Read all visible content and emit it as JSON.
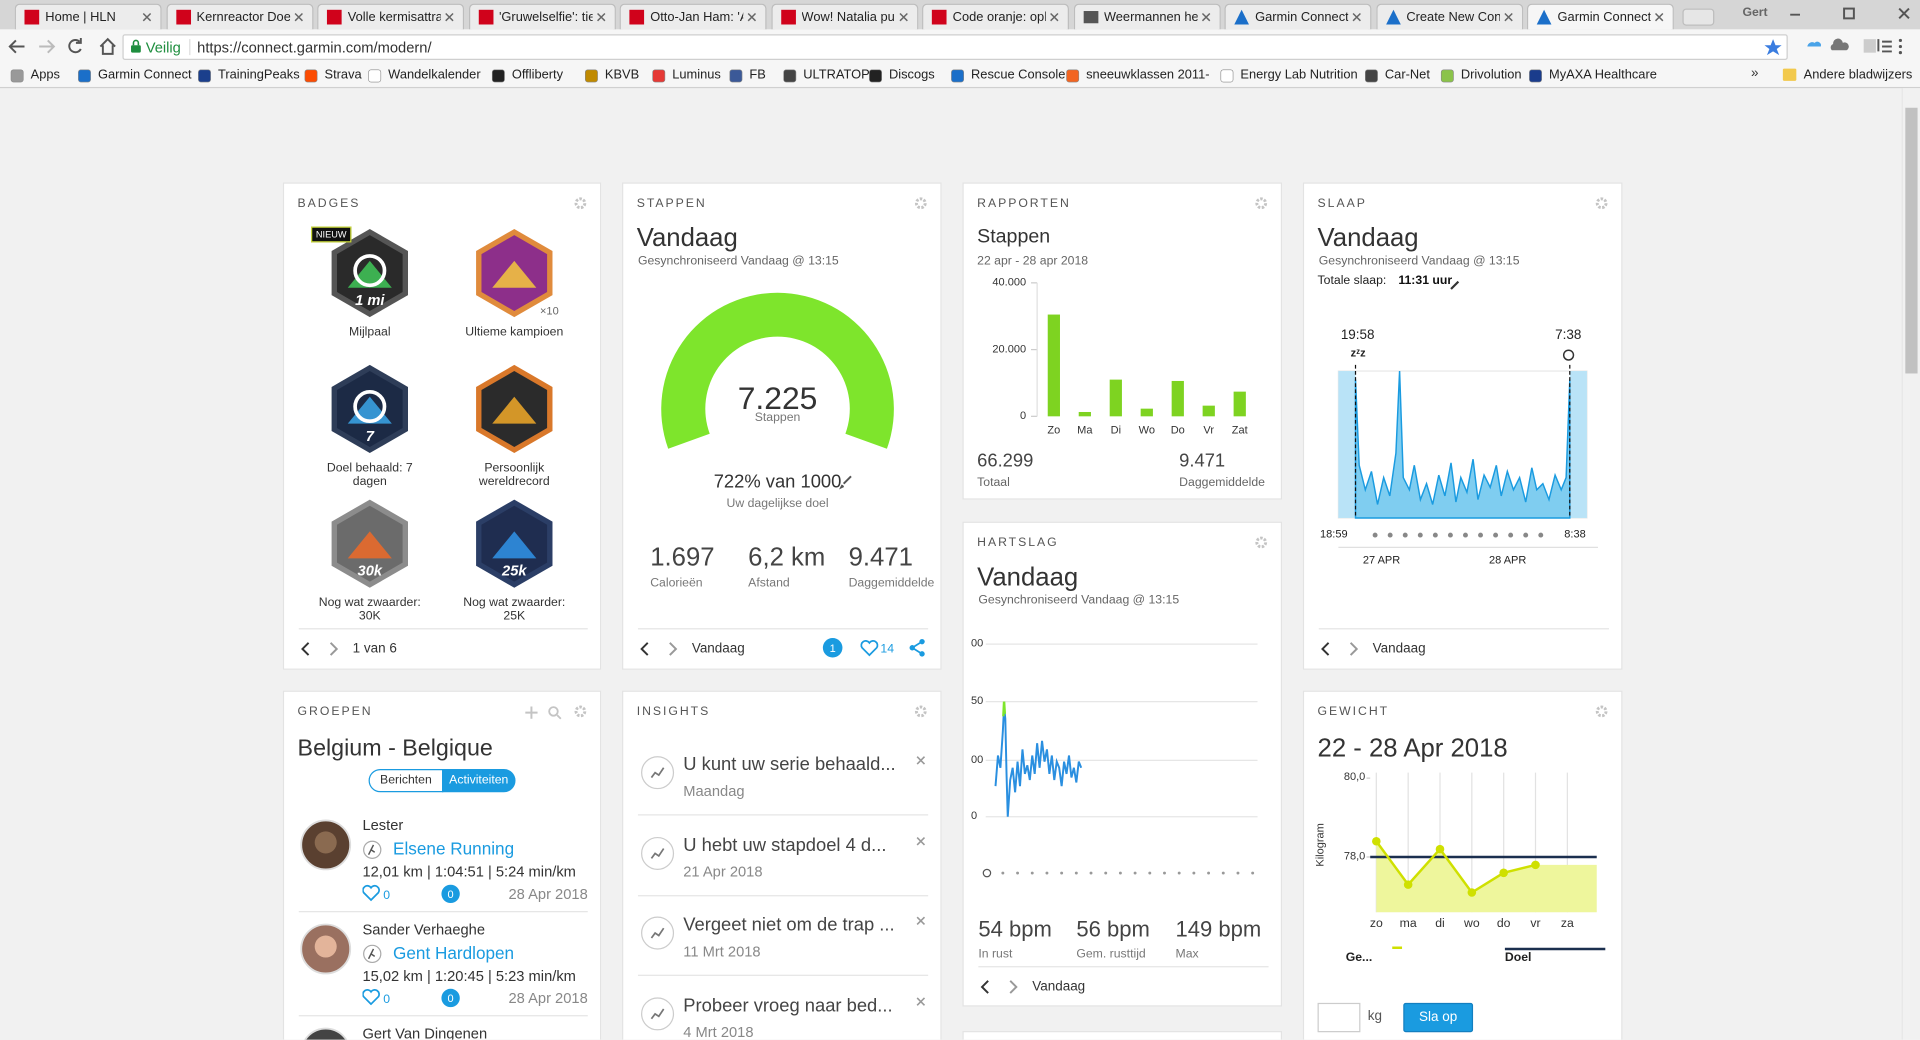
{
  "browser": {
    "tabs": [
      "Home | HLN",
      "Kernreactor Doe",
      "Volle kermisattra",
      "'Gruwelselfie': tie",
      "Otto-Jan Ham: 'A",
      "Wow! Natalia pu",
      "Code oranje: opl",
      "Weermannen hel",
      "Garmin Connect",
      "Create New Cont",
      "Garmin Connect"
    ],
    "user": "Gert",
    "secure_label": "Veilig",
    "url": "https://connect.garmin.com/modern/",
    "bookmarks": [
      "Apps",
      "Garmin Connect",
      "TrainingPeaks",
      "Strava",
      "Wandelkalender",
      "Offliberty",
      "KBVB",
      "Luminus",
      "FB",
      "ULTRATOP",
      "Discogs",
      "Rescue Console",
      "sneeuwklassen 2011-",
      "Energy Lab Nutrition",
      "Car-Net",
      "Drivolution",
      "MyAXA Healthcare"
    ],
    "more": "»",
    "other_bookmarks": "Andere bladwijzers"
  },
  "badges": {
    "title": "BADGES",
    "items": [
      {
        "label": "Mijlpaal",
        "tag": "NIEUW",
        "mark": "1 mi"
      },
      {
        "label": "Ultieme kampioen",
        "count": "×10"
      },
      {
        "label": "Doel behaald: 7 dagen",
        "mark": "7"
      },
      {
        "label": "Persoonlijk wereldrecord"
      },
      {
        "label": "Nog wat zwaarder: 30K",
        "mark": "30k"
      },
      {
        "label": "Nog wat zwaarder: 25K",
        "mark": "25k"
      }
    ],
    "pager": "1 van 6"
  },
  "steps": {
    "title": "STAPPEN",
    "heading": "Vandaag",
    "sync": "Gesynchroniseerd Vandaag @ 13:15",
    "count": "7.225",
    "count_label": "Stappen",
    "goal": "722% van 1000",
    "goal_label": "Uw dagelijkse doel",
    "stats": [
      {
        "value": "1.697",
        "label": "Calorieën"
      },
      {
        "value": "6,2 km",
        "label": "Afstand"
      },
      {
        "value": "9.471",
        "label": "Daggemiddelde"
      }
    ],
    "footer": "Vandaag",
    "comments": "1",
    "likes": "14"
  },
  "reports": {
    "title": "RAPPORTEN",
    "heading": "Stappen",
    "date": "22 apr - 28 apr 2018",
    "chart_data": {
      "type": "bar",
      "categories": [
        "Zo",
        "Ma",
        "Di",
        "Wo",
        "Do",
        "Vr",
        "Zat"
      ],
      "values": [
        30500,
        1300,
        11000,
        2300,
        10600,
        3200,
        7400
      ],
      "color": "#7ed321",
      "ylim": [
        0,
        40000
      ],
      "yticks": [
        0,
        {
          "value": 20000,
          "label": "20.000"
        },
        {
          "value": 40000,
          "label": "40.000"
        }
      ]
    },
    "total": "66.299",
    "total_label": "Totaal",
    "avg": "9.471",
    "avg_label": "Daggemiddelde"
  },
  "sleep": {
    "title": "SLAAP",
    "heading": "Vandaag",
    "sync": "Gesynchroniseerd Vandaag @ 13:15",
    "total_label": "Totale slaap:",
    "total": "11:31 uur",
    "sleep_start": "19:58",
    "sleep_end": "7:38",
    "sleep_icon": "zᶻz",
    "axis_start": "18:59",
    "axis_end": "8:38",
    "days": [
      "27 APR",
      "28 APR"
    ],
    "footer": "Vandaag"
  },
  "heart": {
    "title": "HARTSLAG",
    "heading": "Vandaag",
    "sync": "Gesynchroniseerd Vandaag @ 13:15",
    "axis_labels": [
      "00",
      "50",
      "00",
      "0"
    ],
    "stats": [
      {
        "value": "54 bpm",
        "label": "In rust"
      },
      {
        "value": "56 bpm",
        "label": "Gem. rusttijd"
      },
      {
        "value": "149 bpm",
        "label": "Max"
      }
    ],
    "footer": "Vandaag"
  },
  "weight": {
    "title": "GEWICHT",
    "heading": "22 - 28 Apr 2018",
    "chart_data": {
      "type": "line",
      "ylabel": "Kilogram",
      "categories": [
        "zo",
        "ma",
        "di",
        "wo",
        "do",
        "vr",
        "za"
      ],
      "values": [
        78.4,
        77.3,
        78.2,
        77.1,
        77.6,
        77.8,
        null
      ],
      "color": "#cfe000",
      "goal": 78,
      "goal_color": "#1b2f4f",
      "ylim": [
        76.6,
        80.2
      ],
      "yticks": [
        {
          "value": 80,
          "label": "80,0"
        },
        {
          "value": 78,
          "label": "78,0"
        }
      ]
    },
    "legend": [
      "Ge...",
      "Doel"
    ],
    "unit": "kg",
    "save": "Sla op"
  },
  "groups": {
    "title": "GROEPEN",
    "name": "Belgium - Belgique",
    "tabs": [
      "Berichten",
      "Activiteiten"
    ],
    "entries": [
      {
        "user": "Lester",
        "activity": "Elsene Running",
        "stats": "12,01 km | 1:04:51 | 5:24 min/km",
        "likes": "0",
        "comments": "0",
        "date": "28 Apr 2018"
      },
      {
        "user": "Sander Verhaeghe",
        "activity": "Gent Hardlopen",
        "stats": "15,02 km | 1:20:45 | 5:23 min/km",
        "likes": "0",
        "comments": "0",
        "date": "28 Apr 2018"
      },
      {
        "user": "Gert Van Dingenen"
      }
    ]
  },
  "insights": {
    "title": "INSIGHTS",
    "items": [
      {
        "text": "U kunt uw serie behaald...",
        "date": "Maandag"
      },
      {
        "text": "U hebt uw stapdoel 4 d...",
        "date": "21 Apr 2018"
      },
      {
        "text": "Vergeet niet om de trap ...",
        "date": "11 Mrt 2018"
      },
      {
        "text": "Probeer vroeg naar bed...",
        "date": "4 Mrt 2018"
      }
    ]
  }
}
